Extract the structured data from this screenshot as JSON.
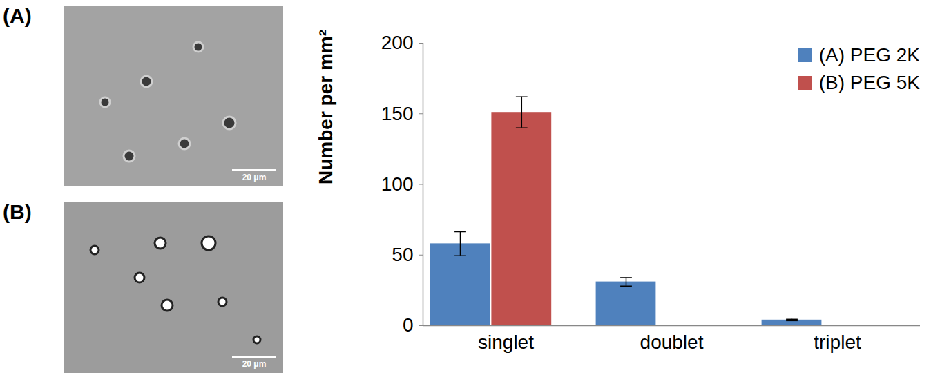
{
  "panels": [
    {
      "label": "(A)",
      "scale_bar": "20 μm"
    },
    {
      "label": "(B)",
      "scale_bar": "20 μm"
    }
  ],
  "chart_data": {
    "type": "bar",
    "categories": [
      "singlet",
      "doublet",
      "triplet"
    ],
    "y_label": "Number per mm²",
    "series": [
      {
        "name": "(A) PEG 2K",
        "color": "#4f81bd",
        "values": [
          58,
          31,
          4
        ],
        "errors": [
          8.5,
          3,
          0.5
        ]
      },
      {
        "name": "(B) PEG 5K",
        "color": "#c0504d",
        "values": [
          151,
          null,
          null
        ],
        "errors": [
          11,
          null,
          null
        ]
      }
    ],
    "ylim": [
      0,
      200
    ],
    "yticks": [
      0,
      50,
      100,
      150,
      200
    ],
    "grid": false,
    "legend": "top-right"
  }
}
